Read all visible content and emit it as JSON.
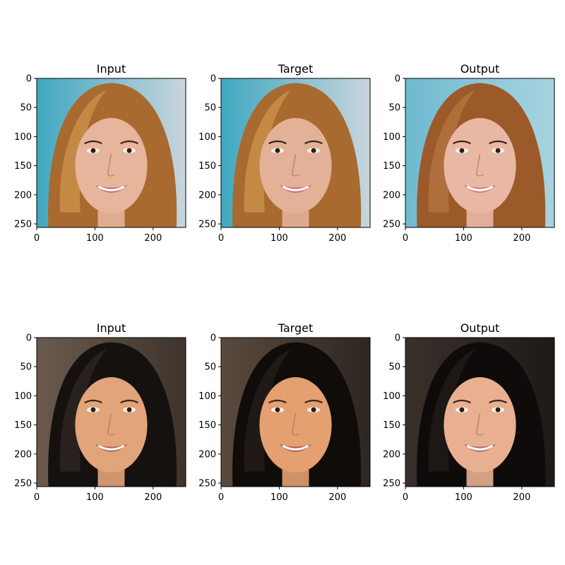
{
  "chart_data": [
    {
      "type": "image",
      "title": "Input",
      "xticks": [
        0,
        100,
        200
      ],
      "yticks": [
        0,
        50,
        100,
        150,
        200,
        250
      ],
      "xlim": [
        0,
        256
      ],
      "ylim": [
        256,
        0
      ],
      "palette": {
        "bg": "#3fa8c0",
        "bg2": "#c9d5dd",
        "hair": "#a86a2e",
        "hair_hi": "#d9a25a",
        "skin": "#e7b59c",
        "lip": "#c9707a"
      }
    },
    {
      "type": "image",
      "title": "Target",
      "xticks": [
        0,
        100,
        200
      ],
      "yticks": [
        0,
        50,
        100,
        150,
        200,
        250
      ],
      "xlim": [
        0,
        256
      ],
      "ylim": [
        256,
        0
      ],
      "palette": {
        "bg": "#3fa8c0",
        "bg2": "#c9d5dd",
        "hair": "#a86a2e",
        "hair_hi": "#d9a25a",
        "skin": "#e2b198",
        "lip": "#c9707a"
      }
    },
    {
      "type": "image",
      "title": "Output",
      "xticks": [
        0,
        100,
        200
      ],
      "yticks": [
        0,
        50,
        100,
        150,
        200,
        250
      ],
      "xlim": [
        0,
        256
      ],
      "ylim": [
        256,
        0
      ],
      "palette": {
        "bg": "#6fb9cf",
        "bg2": "#a9d3e0",
        "hair": "#9c5a2a",
        "hair_hi": "#c0804a",
        "skin": "#e9b8a4",
        "lip": "#d4787e"
      }
    },
    {
      "type": "image",
      "title": "Input",
      "xticks": [
        0,
        100,
        200
      ],
      "yticks": [
        0,
        50,
        100,
        150,
        200,
        250
      ],
      "xlim": [
        0,
        256
      ],
      "ylim": [
        256,
        0
      ],
      "palette": {
        "bg": "#6a5a4c",
        "bg2": "#3e342c",
        "hair": "#15110f",
        "hair_hi": "#3a302a",
        "skin": "#e2a47a",
        "lip": "#b8605a"
      }
    },
    {
      "type": "image",
      "title": "Target",
      "xticks": [
        0,
        100,
        200
      ],
      "yticks": [
        0,
        50,
        100,
        150,
        200,
        250
      ],
      "xlim": [
        0,
        256
      ],
      "ylim": [
        256,
        0
      ],
      "palette": {
        "bg": "#5a4a3e",
        "bg2": "#2e2620",
        "hair": "#100c0a",
        "hair_hi": "#2e2520",
        "skin": "#e4a070",
        "lip": "#b85a52"
      }
    },
    {
      "type": "image",
      "title": "Output",
      "xticks": [
        0,
        100,
        200
      ],
      "yticks": [
        0,
        50,
        100,
        150,
        200,
        250
      ],
      "xlim": [
        0,
        256
      ],
      "ylim": [
        256,
        0
      ],
      "palette": {
        "bg": "#3a302c",
        "bg2": "#1e1a18",
        "hair": "#0e0b0a",
        "hair_hi": "#2a2320",
        "skin": "#e8b090",
        "lip": "#c06a64"
      }
    }
  ]
}
